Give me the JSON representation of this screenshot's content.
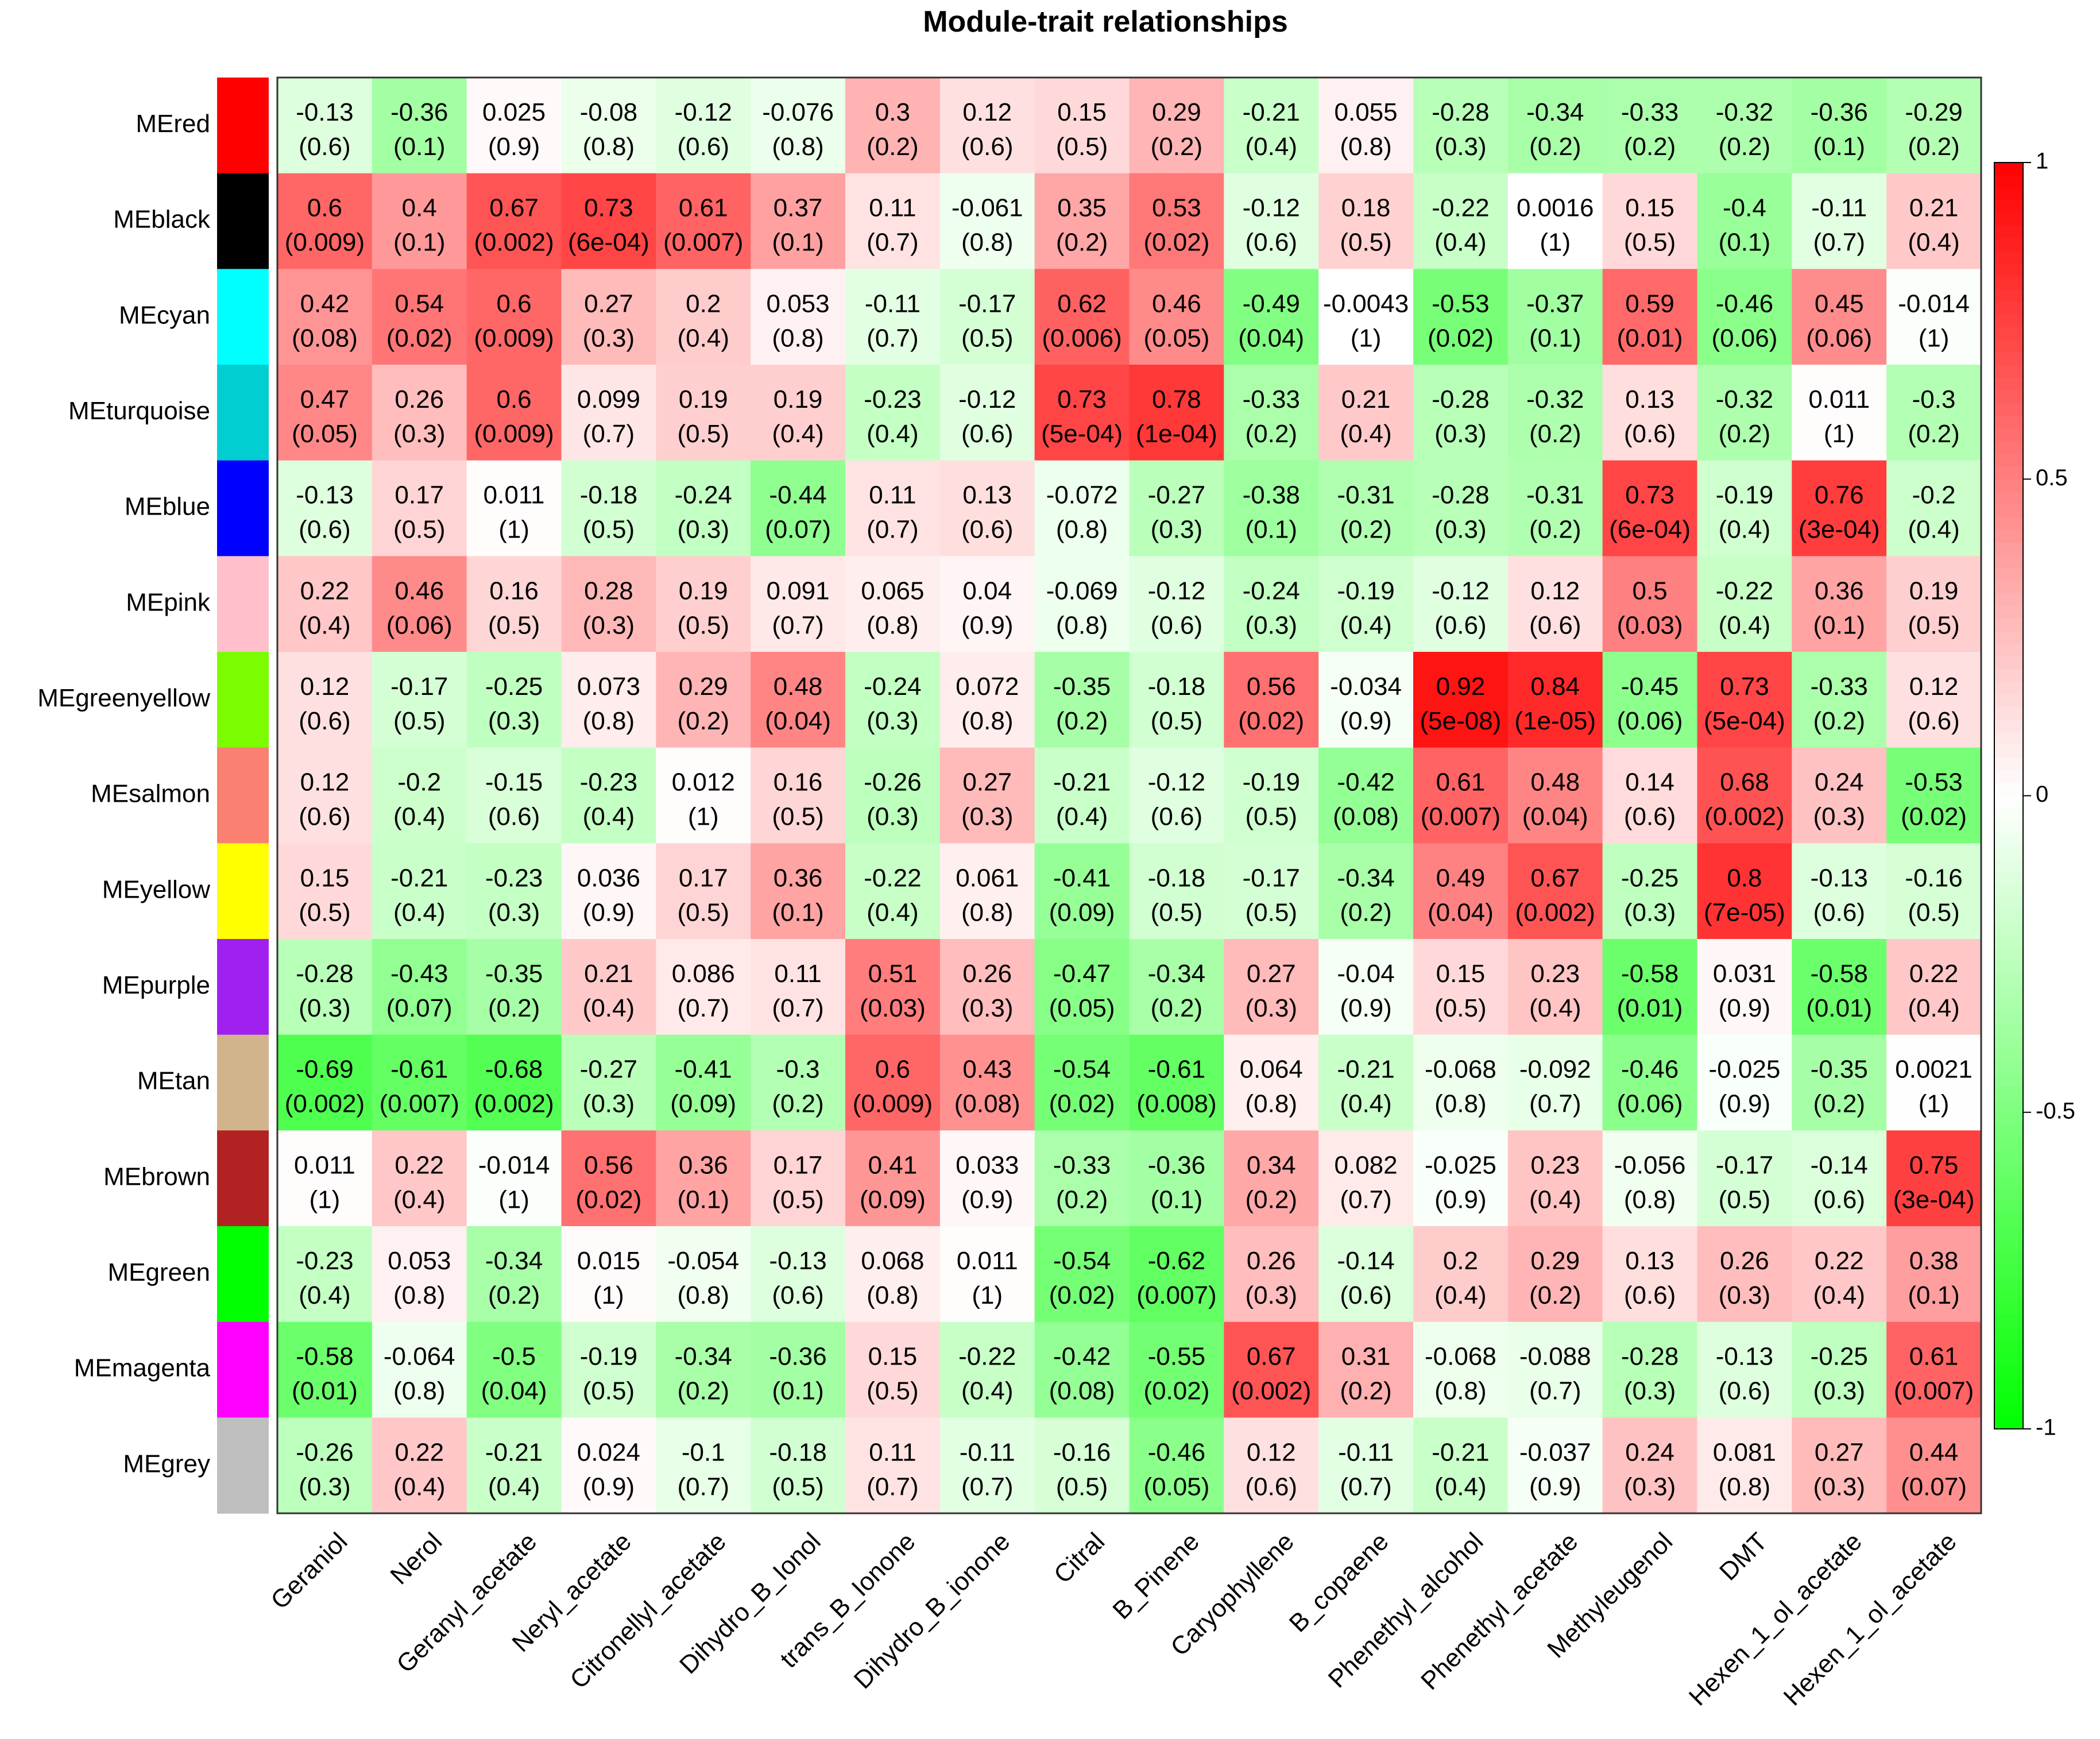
{
  "chart_data": {
    "type": "heatmap",
    "title": "Module-trait relationships",
    "rows": [
      "MEred",
      "MEblack",
      "MEcyan",
      "MEturquoise",
      "MEblue",
      "MEpink",
      "MEgreenyellow",
      "MEsalmon",
      "MEyellow",
      "MEpurple",
      "MEtan",
      "MEbrown",
      "MEgreen",
      "MEmagenta",
      "MEgrey"
    ],
    "row_colors": [
      "#ff0000",
      "#000000",
      "#00ffff",
      "#00ced1",
      "#0000ff",
      "#ffc0cb",
      "#7cfc00",
      "#fa8072",
      "#ffff00",
      "#a020f0",
      "#d2b48c",
      "#b22222",
      "#00ff00",
      "#ff00ff",
      "#bebebe"
    ],
    "columns": [
      "Geraniol",
      "Nerol",
      "Geranyl_acetate",
      "Neryl_acetate",
      "Citronellyl_acetate",
      "Dihydro_B_Ionol",
      "trans_B_Ionone",
      "Dihydro_B_ionone",
      "Citral",
      "B_Pinene",
      "Caryophyllene",
      "B_copaene",
      "Phenethyl_alcohol",
      "Phenethyl_acetate",
      "Methyleugenol",
      "DMT",
      "Hexen_1_ol_acetate",
      "Hexen_1_ol_acetate"
    ],
    "correlations": [
      [
        -0.13,
        -0.36,
        0.025,
        -0.08,
        -0.12,
        -0.076,
        0.3,
        0.12,
        0.15,
        0.29,
        -0.21,
        0.055,
        -0.28,
        -0.34,
        -0.33,
        -0.32,
        -0.36,
        -0.29
      ],
      [
        0.6,
        0.4,
        0.67,
        0.73,
        0.61,
        0.37,
        0.11,
        -0.061,
        0.35,
        0.53,
        -0.12,
        0.18,
        -0.22,
        0.0016,
        0.15,
        -0.4,
        -0.11,
        0.21
      ],
      [
        0.42,
        0.54,
        0.6,
        0.27,
        0.2,
        0.053,
        -0.11,
        -0.17,
        0.62,
        0.46,
        -0.49,
        -0.0043,
        -0.53,
        -0.37,
        0.59,
        -0.46,
        0.45,
        -0.014
      ],
      [
        0.47,
        0.26,
        0.6,
        0.099,
        0.19,
        0.19,
        -0.23,
        -0.12,
        0.73,
        0.78,
        -0.33,
        0.21,
        -0.28,
        -0.32,
        0.13,
        -0.32,
        0.011,
        -0.3
      ],
      [
        -0.13,
        0.17,
        0.011,
        -0.18,
        -0.24,
        -0.44,
        0.11,
        0.13,
        -0.072,
        -0.27,
        -0.38,
        -0.31,
        -0.28,
        -0.31,
        0.73,
        -0.19,
        0.76,
        -0.2
      ],
      [
        0.22,
        0.46,
        0.16,
        0.28,
        0.19,
        0.091,
        0.065,
        0.04,
        -0.069,
        -0.12,
        -0.24,
        -0.19,
        -0.12,
        0.12,
        0.5,
        -0.22,
        0.36,
        0.19
      ],
      [
        0.12,
        -0.17,
        -0.25,
        0.073,
        0.29,
        0.48,
        -0.24,
        0.072,
        -0.35,
        -0.18,
        0.56,
        -0.034,
        0.92,
        0.84,
        -0.45,
        0.73,
        -0.33,
        0.12
      ],
      [
        0.12,
        -0.2,
        -0.15,
        -0.23,
        0.012,
        0.16,
        -0.26,
        0.27,
        -0.21,
        -0.12,
        -0.19,
        -0.42,
        0.61,
        0.48,
        0.14,
        0.68,
        0.24,
        -0.53
      ],
      [
        0.15,
        -0.21,
        -0.23,
        0.036,
        0.17,
        0.36,
        -0.22,
        0.061,
        -0.41,
        -0.18,
        -0.17,
        -0.34,
        0.49,
        0.67,
        -0.25,
        0.8,
        -0.13,
        -0.16
      ],
      [
        -0.28,
        -0.43,
        -0.35,
        0.21,
        0.086,
        0.11,
        0.51,
        0.26,
        -0.47,
        -0.34,
        0.27,
        -0.04,
        0.15,
        0.23,
        -0.58,
        0.031,
        -0.58,
        0.22
      ],
      [
        -0.69,
        -0.61,
        -0.68,
        -0.27,
        -0.41,
        -0.3,
        0.6,
        0.43,
        -0.54,
        -0.61,
        0.064,
        -0.21,
        -0.068,
        -0.092,
        -0.46,
        -0.025,
        -0.35,
        0.0021
      ],
      [
        0.011,
        0.22,
        -0.014,
        0.56,
        0.36,
        0.17,
        0.41,
        0.033,
        -0.33,
        -0.36,
        0.34,
        0.082,
        -0.025,
        0.23,
        -0.056,
        -0.17,
        -0.14,
        0.75
      ],
      [
        -0.23,
        0.053,
        -0.34,
        0.015,
        -0.054,
        -0.13,
        0.068,
        0.011,
        -0.54,
        -0.62,
        0.26,
        -0.14,
        0.2,
        0.29,
        0.13,
        0.26,
        0.22,
        0.38
      ],
      [
        -0.58,
        -0.064,
        -0.5,
        -0.19,
        -0.34,
        -0.36,
        0.15,
        -0.22,
        -0.42,
        -0.55,
        0.67,
        0.31,
        -0.068,
        -0.088,
        -0.28,
        -0.13,
        -0.25,
        0.61
      ],
      [
        -0.26,
        0.22,
        -0.21,
        0.024,
        -0.1,
        -0.18,
        0.11,
        -0.11,
        -0.16,
        -0.46,
        0.12,
        -0.11,
        -0.21,
        -0.037,
        0.24,
        0.081,
        0.27,
        0.44
      ]
    ],
    "pvalues": [
      [
        "0.6",
        "0.1",
        "0.9",
        "0.8",
        "0.6",
        "0.8",
        "0.2",
        "0.6",
        "0.5",
        "0.2",
        "0.4",
        "0.8",
        "0.3",
        "0.2",
        "0.2",
        "0.2",
        "0.1",
        "0.2"
      ],
      [
        "0.009",
        "0.1",
        "0.002",
        "6e-04",
        "0.007",
        "0.1",
        "0.7",
        "0.8",
        "0.2",
        "0.02",
        "0.6",
        "0.5",
        "0.4",
        "1",
        "0.5",
        "0.1",
        "0.7",
        "0.4"
      ],
      [
        "0.08",
        "0.02",
        "0.009",
        "0.3",
        "0.4",
        "0.8",
        "0.7",
        "0.5",
        "0.006",
        "0.05",
        "0.04",
        "1",
        "0.02",
        "0.1",
        "0.01",
        "0.06",
        "0.06",
        "1"
      ],
      [
        "0.05",
        "0.3",
        "0.009",
        "0.7",
        "0.5",
        "0.4",
        "0.4",
        "0.6",
        "5e-04",
        "1e-04",
        "0.2",
        "0.4",
        "0.3",
        "0.2",
        "0.6",
        "0.2",
        "1",
        "0.2"
      ],
      [
        "0.6",
        "0.5",
        "1",
        "0.5",
        "0.3",
        "0.07",
        "0.7",
        "0.6",
        "0.8",
        "0.3",
        "0.1",
        "0.2",
        "0.3",
        "0.2",
        "6e-04",
        "0.4",
        "3e-04",
        "0.4"
      ],
      [
        "0.4",
        "0.06",
        "0.5",
        "0.3",
        "0.5",
        "0.7",
        "0.8",
        "0.9",
        "0.8",
        "0.6",
        "0.3",
        "0.4",
        "0.6",
        "0.6",
        "0.03",
        "0.4",
        "0.1",
        "0.5"
      ],
      [
        "0.6",
        "0.5",
        "0.3",
        "0.8",
        "0.2",
        "0.04",
        "0.3",
        "0.8",
        "0.2",
        "0.5",
        "0.02",
        "0.9",
        "5e-08",
        "1e-05",
        "0.06",
        "5e-04",
        "0.2",
        "0.6"
      ],
      [
        "0.6",
        "0.4",
        "0.6",
        "0.4",
        "1",
        "0.5",
        "0.3",
        "0.3",
        "0.4",
        "0.6",
        "0.5",
        "0.08",
        "0.007",
        "0.04",
        "0.6",
        "0.002",
        "0.3",
        "0.02"
      ],
      [
        "0.5",
        "0.4",
        "0.3",
        "0.9",
        "0.5",
        "0.1",
        "0.4",
        "0.8",
        "0.09",
        "0.5",
        "0.5",
        "0.2",
        "0.04",
        "0.002",
        "0.3",
        "7e-05",
        "0.6",
        "0.5"
      ],
      [
        "0.3",
        "0.07",
        "0.2",
        "0.4",
        "0.7",
        "0.7",
        "0.03",
        "0.3",
        "0.05",
        "0.2",
        "0.3",
        "0.9",
        "0.5",
        "0.4",
        "0.01",
        "0.9",
        "0.01",
        "0.4"
      ],
      [
        "0.002",
        "0.007",
        "0.002",
        "0.3",
        "0.09",
        "0.2",
        "0.009",
        "0.08",
        "0.02",
        "0.008",
        "0.8",
        "0.4",
        "0.8",
        "0.7",
        "0.06",
        "0.9",
        "0.2",
        "1"
      ],
      [
        "1",
        "0.4",
        "1",
        "0.02",
        "0.1",
        "0.5",
        "0.09",
        "0.9",
        "0.2",
        "0.1",
        "0.2",
        "0.7",
        "0.9",
        "0.4",
        "0.8",
        "0.5",
        "0.6",
        "3e-04"
      ],
      [
        "0.4",
        "0.8",
        "0.2",
        "1",
        "0.8",
        "0.6",
        "0.8",
        "1",
        "0.02",
        "0.007",
        "0.3",
        "0.6",
        "0.4",
        "0.2",
        "0.6",
        "0.3",
        "0.4",
        "0.1"
      ],
      [
        "0.01",
        "0.8",
        "0.04",
        "0.5",
        "0.2",
        "0.1",
        "0.5",
        "0.4",
        "0.08",
        "0.02",
        "0.002",
        "0.2",
        "0.8",
        "0.7",
        "0.3",
        "0.6",
        "0.3",
        "0.007"
      ],
      [
        "0.3",
        "0.4",
        "0.4",
        "0.9",
        "0.7",
        "0.5",
        "0.7",
        "0.7",
        "0.5",
        "0.05",
        "0.6",
        "0.7",
        "0.4",
        "0.9",
        "0.3",
        "0.8",
        "0.3",
        "0.07"
      ]
    ],
    "color_scale": {
      "min": -1,
      "max": 1,
      "low_color": "#00ff00",
      "mid_color": "#ffffff",
      "high_color": "#ff0000",
      "ticks": [
        1,
        0.5,
        0,
        -0.5,
        -1
      ],
      "tick_labels": [
        "1",
        "0.5",
        "0",
        "-0.5",
        "-1"
      ]
    },
    "legend_position": "right"
  }
}
